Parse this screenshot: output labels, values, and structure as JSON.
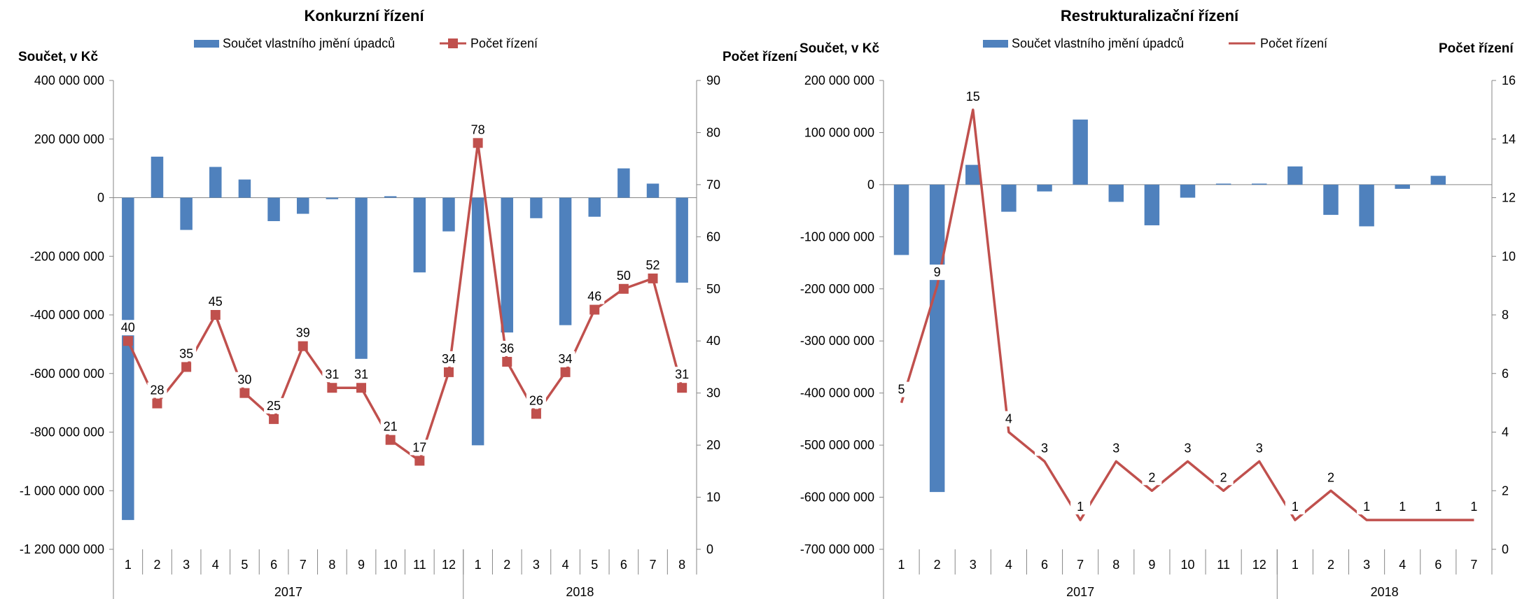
{
  "chart_data": [
    {
      "type": "bar",
      "title": "Konkurzní řízení",
      "ylabel_left": "Součet, v Kč",
      "ylabel_right": "Počet řízení",
      "ylim_left": [
        -1200000000,
        400000000
      ],
      "left_ticks": [
        "400 000 000",
        "200 000 000",
        "0",
        "-200 000 000",
        "-400 000 000",
        "-600 000 000",
        "-800 000 000",
        "-1 000 000 000",
        "-1 200 000 000"
      ],
      "ylim_right": [
        0,
        90
      ],
      "right_ticks": [
        "90",
        "80",
        "70",
        "60",
        "50",
        "40",
        "30",
        "20",
        "10",
        "0"
      ],
      "categories": [
        "1",
        "2",
        "3",
        "4",
        "5",
        "6",
        "7",
        "8",
        "9",
        "10",
        "11",
        "12",
        "1",
        "2",
        "3",
        "4",
        "5",
        "6",
        "7",
        "8"
      ],
      "years": [
        {
          "label": "2017",
          "count": 12
        },
        {
          "label": "2018",
          "count": 8
        }
      ],
      "legend_position": "top",
      "grid": false,
      "series": [
        {
          "name": "Součet vlastního jmění úpadců",
          "kind": "bar",
          "axis": "left",
          "color": "#4F81BD",
          "values": [
            -1100000000,
            140000000,
            -110000000,
            105000000,
            62000000,
            -80000000,
            -55000000,
            -5000000,
            -550000000,
            5000000,
            -255000000,
            -115000000,
            -845000000,
            -460000000,
            -70000000,
            -435000000,
            -65000000,
            100000000,
            48000000,
            -290000000
          ]
        },
        {
          "name": "Počet řízení",
          "kind": "line-marker",
          "axis": "right",
          "color": "#C0504D",
          "values": [
            40,
            28,
            35,
            45,
            30,
            25,
            39,
            31,
            31,
            21,
            17,
            34,
            78,
            36,
            26,
            34,
            46,
            50,
            52,
            31
          ]
        }
      ]
    },
    {
      "type": "bar",
      "title": "Restrukturalizační řízení",
      "ylabel_left": "Součet, v Kč",
      "ylabel_right": "Počet řízení",
      "ylim_left": [
        -700000000,
        200000000
      ],
      "left_ticks": [
        "200 000 000",
        "100 000 000",
        "0",
        "-100 000 000",
        "-200 000 000",
        "-300 000 000",
        "-400 000 000",
        "-500 000 000",
        "-600 000 000",
        "-700 000 000"
      ],
      "ylim_right": [
        0,
        16
      ],
      "right_ticks": [
        "16",
        "14",
        "12",
        "10",
        "8",
        "6",
        "4",
        "2",
        "0"
      ],
      "categories": [
        "1",
        "2",
        "3",
        "4",
        "6",
        "7",
        "8",
        "9",
        "10",
        "11",
        "12",
        "1",
        "2",
        "3",
        "4",
        "6",
        "7"
      ],
      "years": [
        {
          "label": "2017",
          "count": 11
        },
        {
          "label": "2018",
          "count": 6
        }
      ],
      "legend_position": "top",
      "grid": false,
      "series": [
        {
          "name": "Součet vlastního jmění úpadců",
          "kind": "bar",
          "axis": "left",
          "color": "#4F81BD",
          "values": [
            -135000000,
            -590000000,
            38000000,
            -52000000,
            -13000000,
            125000000,
            -33000000,
            -78000000,
            -25000000,
            2000000,
            2000000,
            35000000,
            -58000000,
            -80000000,
            -8000000,
            17000000,
            0
          ]
        },
        {
          "name": "Počet řízení",
          "kind": "line",
          "axis": "right",
          "color": "#C0504D",
          "values": [
            5,
            9,
            15,
            4,
            3,
            1,
            3,
            2,
            3,
            2,
            3,
            1,
            2,
            1,
            1,
            1,
            1
          ]
        }
      ]
    }
  ]
}
